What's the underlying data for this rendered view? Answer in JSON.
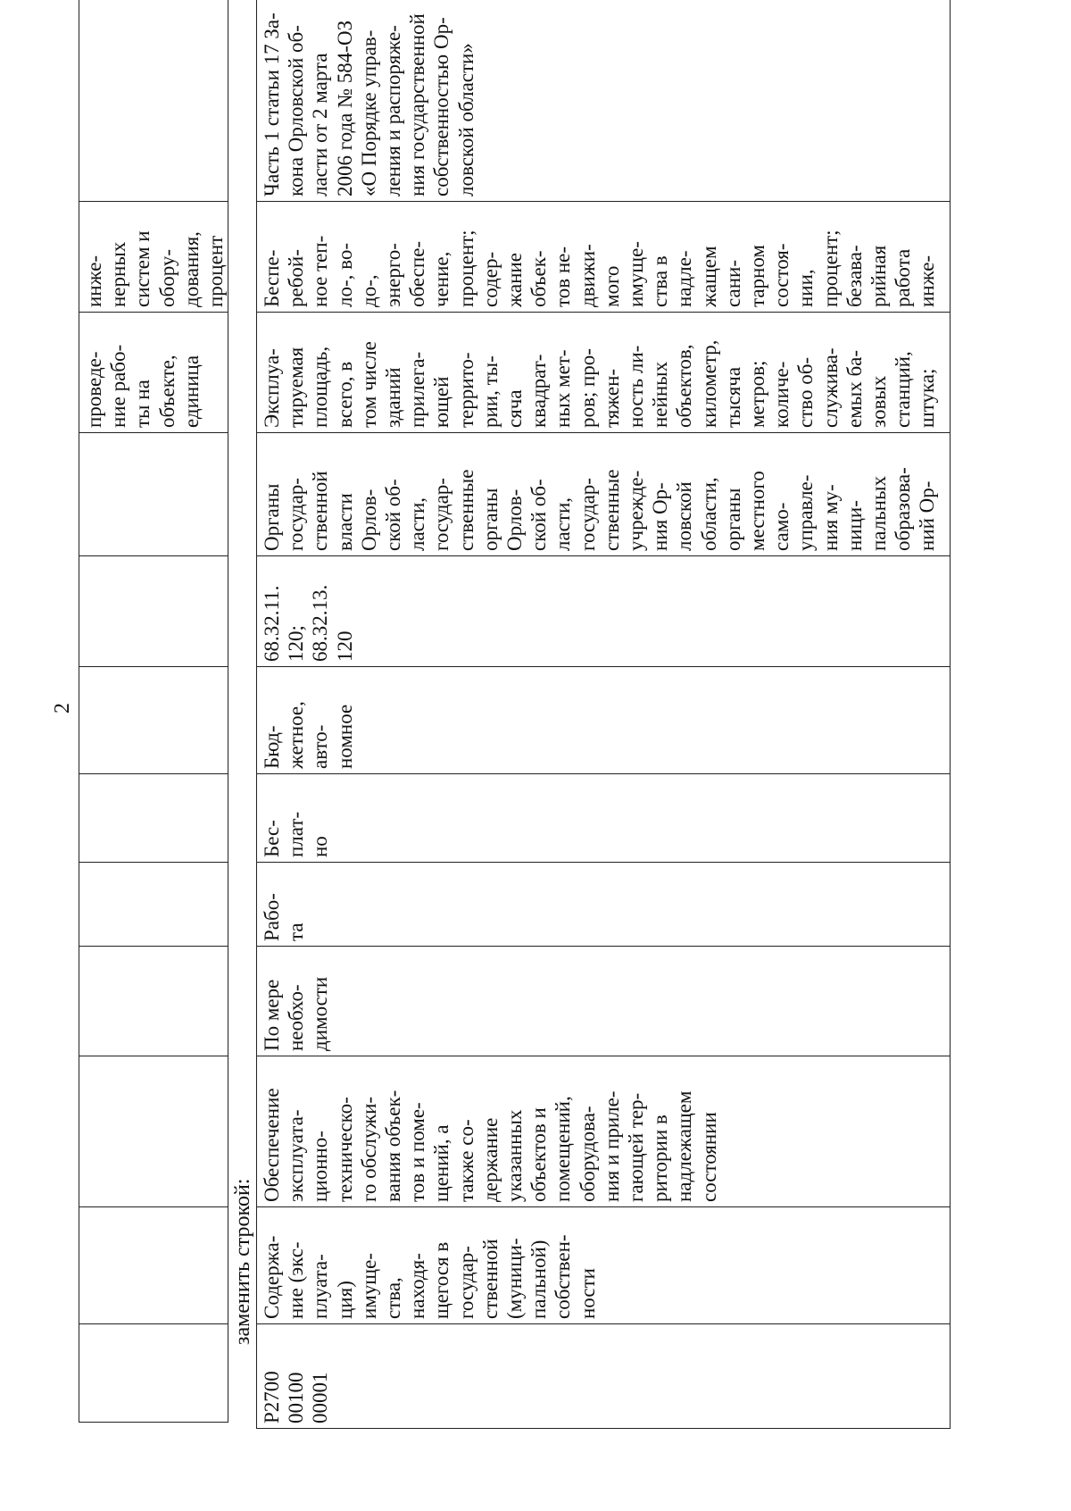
{
  "page_number": "2",
  "replace_label": "заменить строкой:",
  "upper_table": {
    "cells": [
      "",
      "",
      "",
      "",
      "",
      "",
      "",
      "",
      "",
      "проведе-\nние рабо-\nты на\nобъекте,\nединица",
      "инже-\nнерных\nсистем и\nобору-\nдования,\nпроцент",
      ""
    ]
  },
  "lower_table": {
    "cells": [
      "P2700\n00100\n00001",
      "Содержа-\nние (экс-\nплуата-\nция)\nимуще-\nства,\nнаходя-\nщегося в\nгосудар-\nственной\n(муници-\nпальной)\nсобствен-\nности",
      "Обеспечение\nэксплуата-\nционно-\nтехническо-\nго обслужи-\nвания объек-\nтов и поме-\nщений, а\nтакже со-\nдержание\nуказанных\nобъектов и\nпомещений,\nоборудова-\nния и приле-\nгающей тер-\nритории в\nнадлежащем\nсостоянии",
      "По мере\nнеобхо-\nдимости",
      "Рабо-\nта",
      "Бес-\nплат-\nно",
      "Бюд-\nжетное,\nавто-\nномное",
      "68.32.11.\n120;\n68.32.13.\n120",
      "Органы\nгосудар-\nственной\nвласти\nОрлов-\nской об-\nласти,\nгосудар-\nственные\nорганы\nОрлов-\nской об-\nласти,\nгосудар-\nственные\nучрежде-\nния Ор-\nловской\nобласти,\nорганы\nместного\nсамо-\nуправле-\nния му-\nници-\nпальных\nобразова-\nний Ор-",
      "Эксплуа-\nтируемая\nплощадь,\nвсего, в\nтом числе\nзданий\nприлега-\nющей\nтеррито-\nрии, ты-\nсяча\nквадрат-\nных мет-\nров; про-\nтяжен-\nность ли-\nнейных\nобъектов,\nкилометр,\nтысяча\nметров;\nколиче-\nство об-\nслужива-\nемых ба-\nзовых\nстанций,\nштука;",
      "Беспе-\nребой-\nное теп-\nло-, во-\nдо-,\nэнерго-\nобеспе-\nчение,\nпроцент;\nсодер-\nжание\nобъек-\nтов не-\nдвижи-\nмого\nимуще-\nства в\nнадле-\nжащем\nсани-\nтарном\nсостоя-\nнии,\nпроцент;\nбезава-\nрийная\nработа\nинже-",
      "Часть 1 статьи 17 За-\nкона Орловской об-\nласти от 2 марта\n2006 года № 584-ОЗ\n«О Порядке управ-\nления и распоряже-\nния государственной\nсобственностью Ор-\nловской области»"
    ]
  }
}
